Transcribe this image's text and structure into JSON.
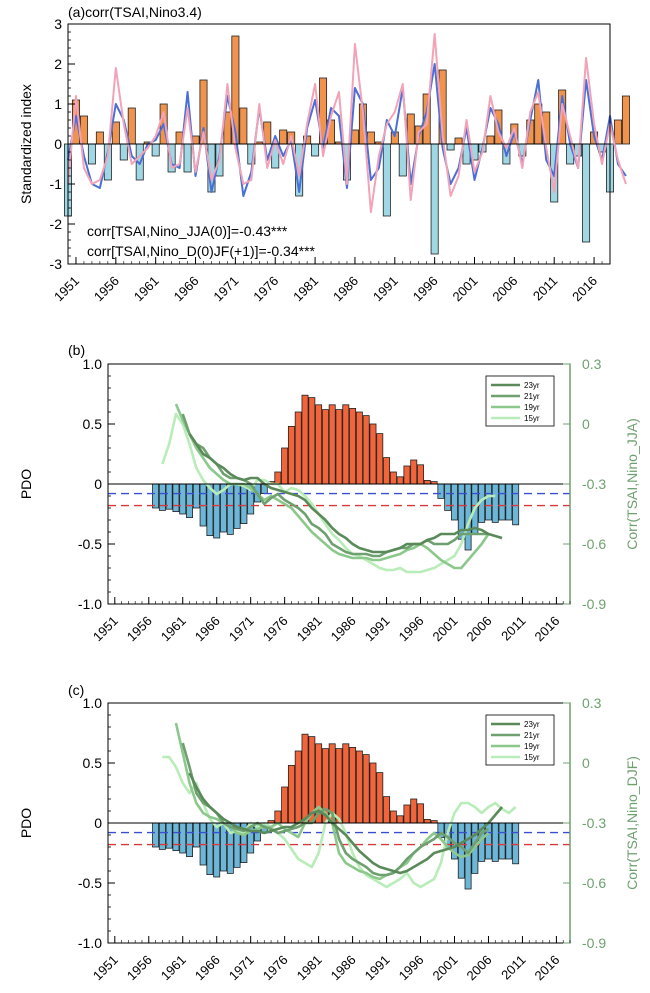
{
  "chart_data": [
    {
      "type": "bar",
      "panel_label": "(a)corr(TSAI,Nino3.4)",
      "ylabel": "Standardized index",
      "ylim": [
        -3,
        3
      ],
      "yticks": [
        "3",
        "2",
        "1",
        "0",
        "-1",
        "-2",
        "-3"
      ],
      "xticks": [
        "1951",
        "1956",
        "1961",
        "1966",
        "1971",
        "1976",
        "1981",
        "1986",
        "1991",
        "1996",
        "2001",
        "2006",
        "2011",
        "2016"
      ],
      "x_start": 1950,
      "x_end": 2018,
      "annotations": [
        "corr[TSAI,Nino_JJA(0)]=-0.43***",
        "corr[TSAI,Nino_D(0)JF(+1)]=-0.34***"
      ],
      "colors": {
        "positive": "#f0934d",
        "negative": "#9fd7e4",
        "nino_jja": "#4a6fd6",
        "nino_djf": "#f3a3b8"
      },
      "bars": [
        -1.8,
        1.1,
        0.7,
        -0.5,
        0.3,
        -0.9,
        0.55,
        -0.4,
        0.9,
        -0.9,
        0.05,
        -0.3,
        1.0,
        -0.7,
        0.3,
        -0.7,
        0.2,
        1.6,
        -1.2,
        -0.8,
        0.8,
        2.7,
        0.9,
        -0.5,
        0.05,
        0.55,
        -0.6,
        0.35,
        0.3,
        -1.3,
        0.2,
        -0.3,
        1.65,
        0.6,
        0.05,
        -0.9,
        0.35,
        1.0,
        0.3,
        0.05,
        -1.8,
        0.3,
        -0.8,
        0.75,
        0.45,
        1.25,
        -2.75,
        1.85,
        -0.15,
        0.15,
        -0.5,
        -0.4,
        -0.2,
        0.2,
        0.85,
        -0.5,
        0.5,
        -0.3,
        0.6,
        1.0,
        0.8,
        -1.45,
        1.35,
        -0.5,
        -0.3,
        -2.45,
        0.3,
        -0.2,
        -1.2,
        0.6,
        1.2
      ],
      "series": [
        {
          "name": "",
          "values": [
            -1.0,
            1.2,
            -0.6,
            -1.0,
            -0.9,
            -0.3,
            1.9,
            0.5,
            -0.5,
            -0.3,
            -0.1,
            0.2,
            0.8,
            -0.6,
            -0.5,
            0.9,
            -0.7,
            0.3,
            -0.9,
            -0.4,
            1.5,
            -0.1,
            -1.0,
            -0.9,
            1.0,
            -0.6,
            0.1,
            -0.5,
            0.2,
            -0.8,
            0.5,
            1.5,
            -0.3,
            0.7,
            1.3,
            -1.0,
            2.5,
            0.8,
            -1.7,
            -0.3,
            0.5,
            0.8,
            1.5,
            -1.4,
            0.3,
            0.5,
            2.75,
            0.2,
            -1.3,
            -0.8,
            0.6,
            -0.7,
            -0.2,
            1.2,
            0.3,
            -0.1,
            0.4,
            -0.6,
            0.8,
            1.3,
            -0.1,
            -1.2,
            1.0,
            0.2,
            -0.6,
            2.15,
            0.5,
            -0.5,
            0.5,
            -0.4,
            -1.0
          ]
        },
        {
          "name": "",
          "values": [
            -0.4,
            0.7,
            -0.3,
            -1.0,
            -1.1,
            -0.2,
            1.0,
            0.6,
            -0.3,
            -0.5,
            0.0,
            0.1,
            0.5,
            -0.5,
            -0.6,
            1.3,
            -0.8,
            0.4,
            -1.2,
            -0.3,
            1.2,
            0.3,
            -1.3,
            -0.7,
            0.9,
            -0.4,
            0.2,
            -0.3,
            0.1,
            -1.2,
            0.4,
            1.1,
            -0.1,
            0.9,
            0.7,
            -1.1,
            1.4,
            1.0,
            -0.9,
            -0.6,
            0.6,
            0.2,
            1.4,
            -1.0,
            0.2,
            0.8,
            2.0,
            -0.1,
            -1.0,
            -0.6,
            0.4,
            -0.9,
            -0.1,
            0.9,
            0.5,
            -0.3,
            0.3,
            -0.5,
            0.6,
            1.6,
            -0.4,
            -0.8,
            1.2,
            0.0,
            -0.6,
            1.6,
            0.2,
            -0.4,
            0.7,
            -0.5,
            -0.8
          ]
        }
      ]
    },
    {
      "type": "bar",
      "panel_label": "(b)",
      "ylabel": "PDO",
      "ylabel_right": "Corr(TSAI,Nino_JJA)",
      "ylim": [
        -1.0,
        1.0
      ],
      "ylim_right": [
        -0.9,
        0.3
      ],
      "yticks": [
        "1.0",
        "0.5",
        "0",
        "-0.5",
        "-1.0"
      ],
      "yticks_right": [
        "0.3",
        "0",
        "-0.3",
        "-0.6",
        "-0.9"
      ],
      "xticks": [
        "1951",
        "1956",
        "1961",
        "1966",
        "1971",
        "1976",
        "1981",
        "1986",
        "1991",
        "1996",
        "2001",
        "2006",
        "2011",
        "2016"
      ],
      "x_start": 1950,
      "x_end": 2018,
      "bar_x_start": 1957,
      "bars": [
        -0.2,
        -0.22,
        -0.21,
        -0.23,
        -0.25,
        -0.28,
        -0.2,
        -0.35,
        -0.43,
        -0.45,
        -0.4,
        -0.42,
        -0.37,
        -0.33,
        -0.25,
        -0.15,
        -0.08,
        0.02,
        0.1,
        0.3,
        0.48,
        0.6,
        0.74,
        0.72,
        0.66,
        0.62,
        0.66,
        0.62,
        0.66,
        0.63,
        0.6,
        0.57,
        0.5,
        0.42,
        0.22,
        0.1,
        0.06,
        0.15,
        0.2,
        0.16,
        0.03,
        0.02,
        -0.12,
        -0.22,
        -0.3,
        -0.46,
        -0.55,
        -0.42,
        -0.32,
        -0.3,
        -0.32,
        -0.3,
        -0.3,
        -0.34
      ],
      "hlines": [
        {
          "value": -0.08,
          "color": "#3a4fd0"
        },
        {
          "value": -0.18,
          "color": "#d63a3a"
        }
      ],
      "legend": [
        "23yr",
        "21yr",
        "19yr",
        "15yr"
      ],
      "legend_position": "top-right",
      "colors": {
        "positive": "#f2643a",
        "negative": "#6cb6d8",
        "23yr": "#5a8a5a",
        "21yr": "#6fa06f",
        "19yr": "#8cc88c",
        "15yr": "#b8ecb8"
      },
      "series": [
        {
          "name": "23yr",
          "x_start": 1962,
          "values": [
            -0.05,
            -0.1,
            -0.15,
            -0.17,
            -0.2,
            -0.22,
            -0.25,
            -0.27,
            -0.28,
            -0.27,
            -0.27,
            -0.3,
            -0.32,
            -0.33,
            -0.34,
            -0.35,
            -0.36,
            -0.38,
            -0.42,
            -0.45,
            -0.48,
            -0.52,
            -0.55,
            -0.57,
            -0.6,
            -0.62,
            -0.63,
            -0.64,
            -0.64,
            -0.64,
            -0.63,
            -0.62,
            -0.6,
            -0.6,
            -0.6,
            -0.58,
            -0.57,
            -0.55,
            -0.55,
            -0.55,
            -0.53,
            -0.53,
            -0.52,
            -0.53,
            -0.55,
            -0.56,
            -0.57
          ]
        },
        {
          "name": "21yr",
          "x_start": 1961,
          "values": [
            0.05,
            -0.05,
            -0.1,
            -0.12,
            -0.17,
            -0.2,
            -0.25,
            -0.27,
            -0.27,
            -0.28,
            -0.3,
            -0.35,
            -0.4,
            -0.37,
            -0.35,
            -0.38,
            -0.4,
            -0.42,
            -0.45,
            -0.5,
            -0.52,
            -0.55,
            -0.6,
            -0.62,
            -0.64,
            -0.65,
            -0.65,
            -0.65,
            -0.66,
            -0.66,
            -0.64,
            -0.63,
            -0.62,
            -0.62,
            -0.6,
            -0.6,
            -0.58,
            -0.6,
            -0.6,
            -0.6,
            -0.58,
            -0.55,
            -0.55,
            -0.55,
            -0.55,
            -0.55
          ]
        },
        {
          "name": "19yr",
          "x_start": 1960,
          "values": [
            0.1,
            0.02,
            -0.05,
            -0.12,
            -0.17,
            -0.22,
            -0.25,
            -0.28,
            -0.3,
            -0.3,
            -0.3,
            -0.32,
            -0.35,
            -0.38,
            -0.36,
            -0.38,
            -0.4,
            -0.42,
            -0.46,
            -0.5,
            -0.54,
            -0.57,
            -0.6,
            -0.63,
            -0.65,
            -0.66,
            -0.67,
            -0.67,
            -0.67,
            -0.68,
            -0.68,
            -0.67,
            -0.66,
            -0.65,
            -0.63,
            -0.62,
            -0.6,
            -0.62,
            -0.65,
            -0.68,
            -0.7,
            -0.72,
            -0.72,
            -0.68,
            -0.64,
            -0.6,
            -0.55
          ]
        },
        {
          "name": "15yr",
          "x_start": 1958,
          "values": [
            -0.2,
            -0.1,
            0.05,
            0.0,
            -0.1,
            -0.22,
            -0.28,
            -0.32,
            -0.35,
            -0.33,
            -0.3,
            -0.3,
            -0.31,
            -0.33,
            -0.28,
            -0.28,
            -0.3,
            -0.3,
            -0.34,
            -0.32,
            -0.33,
            -0.36,
            -0.4,
            -0.45,
            -0.5,
            -0.55,
            -0.58,
            -0.62,
            -0.65,
            -0.66,
            -0.68,
            -0.7,
            -0.72,
            -0.73,
            -0.73,
            -0.72,
            -0.74,
            -0.74,
            -0.74,
            -0.73,
            -0.72,
            -0.7,
            -0.68,
            -0.66,
            -0.6,
            -0.5,
            -0.42,
            -0.38,
            -0.36,
            -0.36
          ]
        }
      ]
    },
    {
      "type": "bar",
      "panel_label": "(c)",
      "ylabel": "PDO",
      "ylabel_right": "Corr(TSAI,Nino_DJF)",
      "ylim": [
        -1.0,
        1.0
      ],
      "ylim_right": [
        -0.9,
        0.3
      ],
      "yticks": [
        "1.0",
        "0.5",
        "0",
        "-0.5",
        "-1.0"
      ],
      "yticks_right": [
        "0.3",
        "0",
        "-0.3",
        "-0.6",
        "-0.9"
      ],
      "xticks": [
        "1951",
        "1956",
        "1961",
        "1966",
        "1971",
        "1976",
        "1981",
        "1986",
        "1991",
        "1996",
        "2001",
        "2006",
        "2011",
        "2016"
      ],
      "x_start": 1950,
      "x_end": 2018,
      "bar_x_start": 1957,
      "bars": [
        -0.2,
        -0.22,
        -0.21,
        -0.23,
        -0.25,
        -0.28,
        -0.2,
        -0.35,
        -0.43,
        -0.45,
        -0.4,
        -0.42,
        -0.37,
        -0.33,
        -0.25,
        -0.15,
        -0.08,
        0.02,
        0.1,
        0.3,
        0.48,
        0.6,
        0.74,
        0.72,
        0.66,
        0.62,
        0.66,
        0.62,
        0.66,
        0.63,
        0.6,
        0.57,
        0.5,
        0.42,
        0.22,
        0.1,
        0.06,
        0.15,
        0.2,
        0.16,
        0.03,
        0.02,
        -0.12,
        -0.22,
        -0.3,
        -0.46,
        -0.55,
        -0.42,
        -0.32,
        -0.3,
        -0.32,
        -0.3,
        -0.3,
        -0.34
      ],
      "hlines": [
        {
          "value": -0.08,
          "color": "#3a4fd0"
        },
        {
          "value": -0.18,
          "color": "#d63a3a"
        }
      ],
      "legend": [
        "23yr",
        "21yr",
        "19yr",
        "15yr"
      ],
      "legend_position": "top-right",
      "colors": {
        "positive": "#f2643a",
        "negative": "#6cb6d8",
        "23yr": "#5a8a5a",
        "21yr": "#6fa06f",
        "19yr": "#8cc88c",
        "15yr": "#b8ecb8"
      },
      "series": [
        {
          "name": "23yr",
          "x_start": 1962,
          "values": [
            -0.05,
            -0.12,
            -0.18,
            -0.22,
            -0.25,
            -0.28,
            -0.3,
            -0.32,
            -0.33,
            -0.34,
            -0.34,
            -0.35,
            -0.34,
            -0.33,
            -0.32,
            -0.32,
            -0.3,
            -0.28,
            -0.25,
            -0.24,
            -0.26,
            -0.3,
            -0.33,
            -0.36,
            -0.4,
            -0.44,
            -0.47,
            -0.5,
            -0.52,
            -0.53,
            -0.54,
            -0.55,
            -0.54,
            -0.52,
            -0.5,
            -0.48,
            -0.45,
            -0.44,
            -0.43,
            -0.42,
            -0.4,
            -0.38,
            -0.36,
            -0.33,
            -0.3,
            -0.26,
            -0.22
          ]
        },
        {
          "name": "21yr",
          "x_start": 1961,
          "values": [
            0.1,
            -0.02,
            -0.15,
            -0.2,
            -0.22,
            -0.25,
            -0.3,
            -0.32,
            -0.33,
            -0.34,
            -0.32,
            -0.3,
            -0.32,
            -0.33,
            -0.35,
            -0.34,
            -0.33,
            -0.32,
            -0.3,
            -0.3,
            -0.25,
            -0.23,
            -0.25,
            -0.38,
            -0.45,
            -0.48,
            -0.5,
            -0.52,
            -0.55,
            -0.56,
            -0.56,
            -0.55,
            -0.52,
            -0.48,
            -0.45,
            -0.42,
            -0.4,
            -0.38,
            -0.35,
            -0.37,
            -0.4,
            -0.42,
            -0.45,
            -0.4,
            -0.35,
            -0.33
          ]
        },
        {
          "name": "19yr",
          "x_start": 1960,
          "values": [
            0.2,
            0.05,
            -0.1,
            -0.2,
            -0.25,
            -0.27,
            -0.28,
            -0.3,
            -0.32,
            -0.35,
            -0.36,
            -0.34,
            -0.33,
            -0.32,
            -0.32,
            -0.3,
            -0.33,
            -0.35,
            -0.37,
            -0.3,
            -0.25,
            -0.22,
            -0.25,
            -0.3,
            -0.45,
            -0.5,
            -0.52,
            -0.54,
            -0.55,
            -0.57,
            -0.58,
            -0.56,
            -0.55,
            -0.52,
            -0.5,
            -0.45,
            -0.42,
            -0.38,
            -0.35,
            -0.38,
            -0.42,
            -0.45,
            -0.47,
            -0.46,
            -0.42,
            -0.38,
            -0.35
          ]
        },
        {
          "name": "15yr",
          "x_start": 1958,
          "values": [
            0.03,
            0.03,
            -0.02,
            -0.1,
            -0.15,
            -0.1,
            -0.2,
            -0.28,
            -0.32,
            -0.3,
            -0.35,
            -0.34,
            -0.35,
            -0.3,
            -0.32,
            -0.3,
            -0.32,
            -0.35,
            -0.38,
            -0.43,
            -0.48,
            -0.5,
            -0.52,
            -0.45,
            -0.3,
            -0.25,
            -0.28,
            -0.35,
            -0.45,
            -0.52,
            -0.56,
            -0.58,
            -0.6,
            -0.62,
            -0.6,
            -0.58,
            -0.55,
            -0.6,
            -0.62,
            -0.6,
            -0.58,
            -0.5,
            -0.35,
            -0.25,
            -0.2,
            -0.2,
            -0.22,
            -0.25,
            -0.22,
            -0.2,
            -0.23,
            -0.25,
            -0.22
          ]
        }
      ]
    }
  ]
}
